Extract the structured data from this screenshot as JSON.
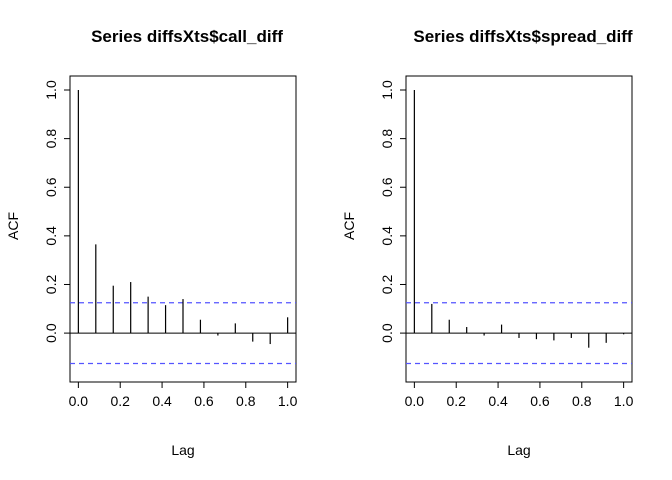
{
  "chart_data": [
    {
      "type": "bar",
      "subtype": "acf-spike",
      "title": "Series  diffsXts$call_diff",
      "xlabel": "Lag",
      "ylabel": "ACF",
      "xlim": [
        -0.04,
        1.04
      ],
      "ylim": [
        -0.16,
        1.0
      ],
      "xticks": [
        0.0,
        0.2,
        0.4,
        0.6,
        0.8,
        1.0
      ],
      "xtick_labels": [
        "0.0",
        "0.2",
        "0.4",
        "0.6",
        "0.8",
        "1.0"
      ],
      "yticks": [
        0.0,
        0.2,
        0.4,
        0.6,
        0.8,
        1.0
      ],
      "ytick_labels": [
        "0.0",
        "0.2",
        "0.4",
        "0.6",
        "0.8",
        "1.0"
      ],
      "x": [
        0.0,
        0.0833,
        0.1667,
        0.25,
        0.3333,
        0.4167,
        0.5,
        0.5833,
        0.6667,
        0.75,
        0.8333,
        0.9167,
        1.0
      ],
      "values": [
        1.0,
        0.365,
        0.195,
        0.21,
        0.15,
        0.115,
        0.14,
        0.055,
        -0.01,
        0.04,
        -0.035,
        -0.045,
        0.065
      ],
      "confidence_bound": 0.125,
      "confidence_color": "#5555ff",
      "grid": false
    },
    {
      "type": "bar",
      "subtype": "acf-spike",
      "title": "Series  diffsXts$spread_diff",
      "xlabel": "Lag",
      "ylabel": "ACF",
      "xlim": [
        -0.04,
        1.04
      ],
      "ylim": [
        -0.16,
        1.0
      ],
      "xticks": [
        0.0,
        0.2,
        0.4,
        0.6,
        0.8,
        1.0
      ],
      "xtick_labels": [
        "0.0",
        "0.2",
        "0.4",
        "0.6",
        "0.8",
        "1.0"
      ],
      "yticks": [
        0.0,
        0.2,
        0.4,
        0.6,
        0.8,
        1.0
      ],
      "ytick_labels": [
        "0.0",
        "0.2",
        "0.4",
        "0.6",
        "0.8",
        "1.0"
      ],
      "x": [
        0.0,
        0.0833,
        0.1667,
        0.25,
        0.3333,
        0.4167,
        0.5,
        0.5833,
        0.6667,
        0.75,
        0.8333,
        0.9167,
        1.0
      ],
      "values": [
        1.0,
        0.12,
        0.055,
        0.025,
        -0.01,
        0.035,
        -0.02,
        -0.025,
        -0.03,
        -0.02,
        -0.06,
        -0.04,
        -0.005
      ],
      "confidence_bound": 0.125,
      "confidence_color": "#5555ff",
      "grid": false
    }
  ]
}
